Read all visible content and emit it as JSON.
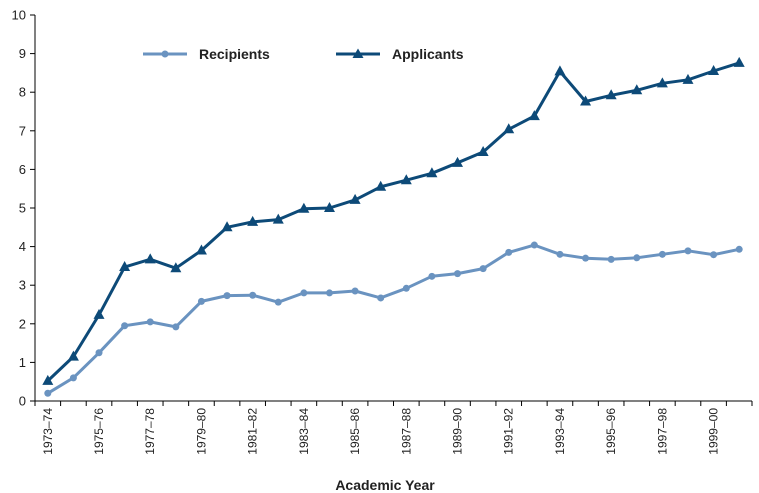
{
  "chart_data": {
    "type": "line",
    "title": "",
    "xlabel": "Academic Year",
    "ylabel": "",
    "ylim": [
      0,
      10
    ],
    "yticks": [
      0,
      1,
      2,
      3,
      4,
      5,
      6,
      7,
      8,
      9,
      10
    ],
    "grid": false,
    "legend_position": "top-center",
    "categories": [
      "1973–74",
      "1974–75",
      "1975–76",
      "1976–77",
      "1977–78",
      "1978–79",
      "1979–80",
      "1980–81",
      "1981–82",
      "1982–83",
      "1983–84",
      "1984–85",
      "1985–86",
      "1986–87",
      "1987–88",
      "1988–89",
      "1989–90",
      "1990–91",
      "1991–92",
      "1992–93",
      "1993–94",
      "1994–95",
      "1995–96",
      "1996–97",
      "1997–98",
      "1998–99",
      "1999–00",
      "2000–01"
    ],
    "x_tick_labels": [
      "1973–74",
      "1975–76",
      "1977–78",
      "1979–80",
      "1981–82",
      "1983–84",
      "1985–86",
      "1987–88",
      "1989–90",
      "1991–92",
      "1993–94",
      "1995–96",
      "1997–98",
      "1999–00"
    ],
    "series": [
      {
        "name": "Recipients",
        "color": "#6a93c0",
        "marker": "circle",
        "values": [
          0.2,
          0.6,
          1.25,
          1.95,
          2.05,
          1.92,
          2.58,
          2.73,
          2.74,
          2.56,
          2.8,
          2.8,
          2.85,
          2.67,
          2.92,
          3.23,
          3.3,
          3.43,
          3.85,
          4.04,
          3.8,
          3.7,
          3.67,
          3.71,
          3.8,
          3.89,
          3.79,
          3.93
        ]
      },
      {
        "name": "Applicants",
        "color": "#0d4a78",
        "marker": "triangle",
        "values": [
          0.52,
          1.15,
          2.23,
          3.47,
          3.67,
          3.44,
          3.9,
          4.5,
          4.64,
          4.7,
          4.98,
          5.0,
          5.21,
          5.55,
          5.72,
          5.9,
          6.17,
          6.45,
          7.04,
          7.38,
          8.54,
          7.76,
          7.92,
          8.05,
          8.23,
          8.32,
          8.55,
          8.76
        ]
      }
    ]
  }
}
